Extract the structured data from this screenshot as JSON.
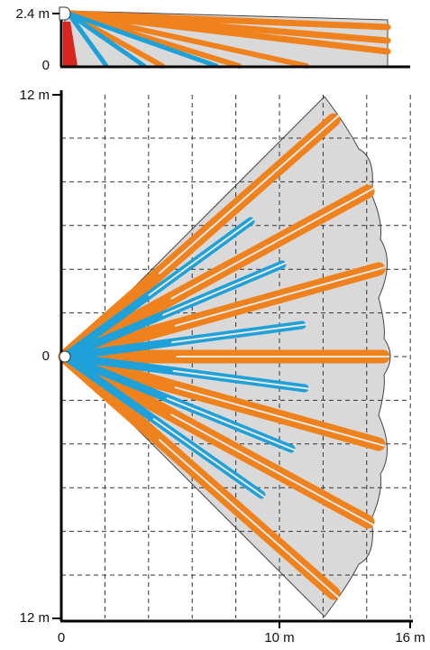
{
  "side_view": {
    "y_labels": [
      "2.4 m",
      "0"
    ]
  },
  "top_view": {
    "y_labels": [
      "12 m",
      "0",
      "12 m"
    ],
    "x_labels": [
      "0",
      "10 m",
      "16 m"
    ]
  }
}
